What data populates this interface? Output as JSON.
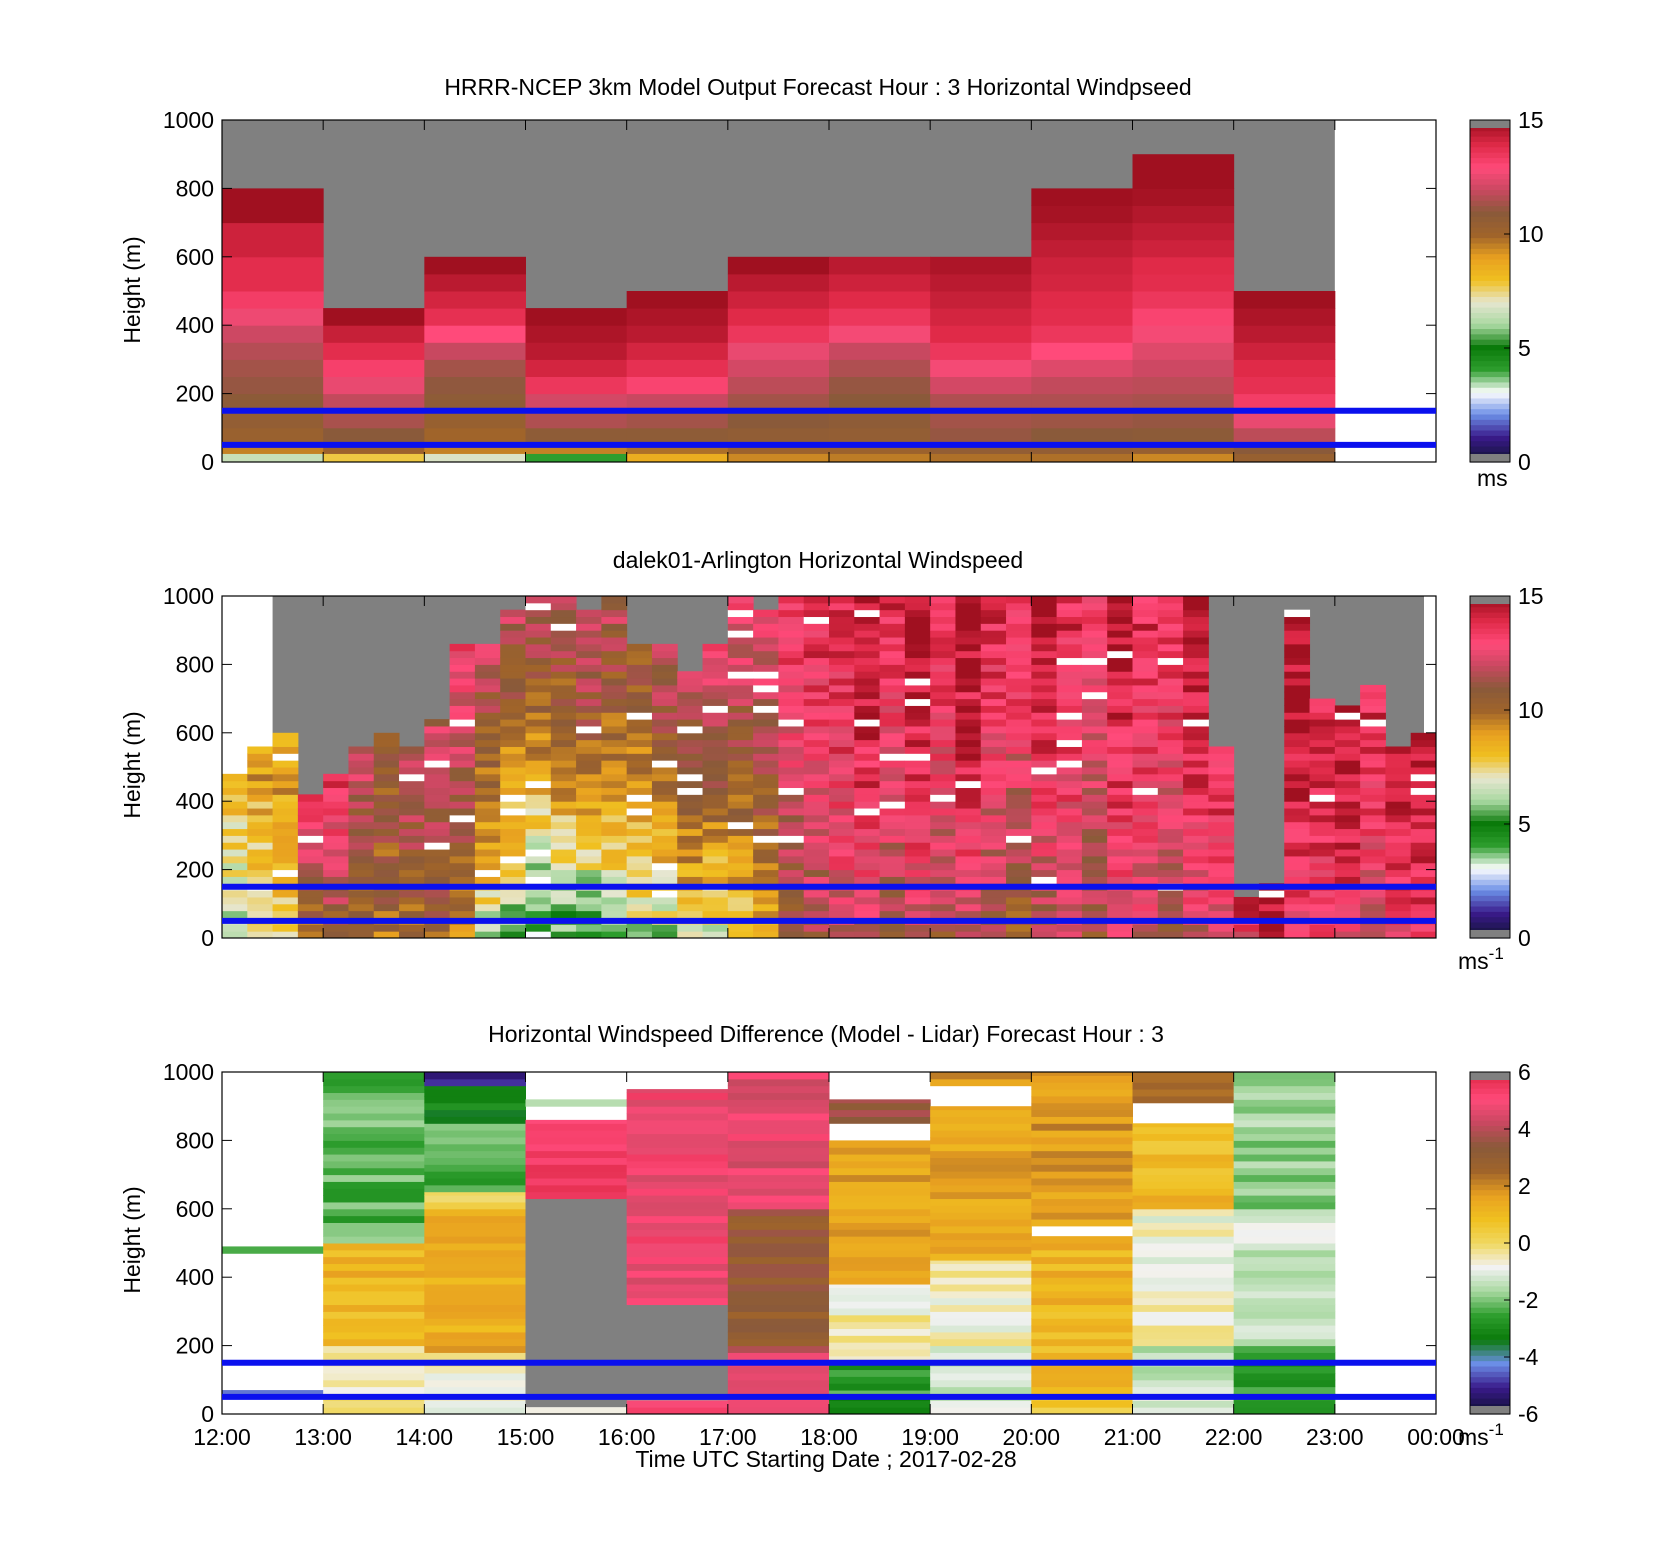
{
  "figure": {
    "xlabel": "Time UTC  Starting Date ; 2017-02-28",
    "x_ticks": [
      "12:00",
      "13:00",
      "14:00",
      "15:00",
      "16:00",
      "17:00",
      "18:00",
      "19:00",
      "20:00",
      "21:00",
      "22:00",
      "23:00",
      "00:00"
    ]
  },
  "colors": {
    "missing": "#808080",
    "overlay_lines": "#0a10ee",
    "speed_scale": [
      "#14143a",
      "#3a1a8a",
      "#6b8ee6",
      "#ffffff",
      "#2e9e2e",
      "#0a7a0a",
      "#a8d8a0",
      "#e6e6d0",
      "#f0c020",
      "#e8a020",
      "#a0642a",
      "#8a5a3a",
      "#c84860",
      "#ff4a7a",
      "#e02a48",
      "#a01020"
    ],
    "diff_scale": [
      "#101038",
      "#3a1a8a",
      "#6b8ee6",
      "#0a7a0a",
      "#2e9e2e",
      "#a8d8a0",
      "#f2f2f2",
      "#f0d860",
      "#f0c020",
      "#e8a020",
      "#a0642a",
      "#8a5a3a",
      "#c84860",
      "#ff4a7a",
      "#e02a48"
    ]
  },
  "chart_data": [
    {
      "type": "heatmap",
      "title": "HRRR-NCEP 3km Model Output   Forecast Hour : 3 Horizontal Windpseed",
      "ylabel": "Height (m)",
      "ylim": [
        0,
        1000
      ],
      "y_ticks": [
        "1000",
        "800",
        "600",
        "400",
        "200",
        "0"
      ],
      "xlim_hours": [
        12,
        24
      ],
      "colorbar": {
        "min": 0,
        "max": 15,
        "ticks": [
          "15",
          "10",
          "5",
          "0"
        ],
        "unit": "ms"
      },
      "reference_lines_m": [
        150,
        50
      ],
      "columns": [
        {
          "start": 12,
          "tops": [
            25,
            50,
            100,
            150,
            200,
            250,
            300,
            350,
            400,
            450,
            500,
            600,
            700,
            800
          ],
          "values": [
            6.5,
            9.5,
            10.3,
            10.6,
            10.9,
            11.2,
            11.4,
            11.7,
            12.1,
            12.7,
            13.4,
            13.9,
            14.3,
            15.0
          ]
        },
        {
          "start": 13,
          "tops": [
            25,
            50,
            100,
            150,
            200,
            250,
            300,
            350,
            400,
            450
          ],
          "values": [
            7.8,
            10.2,
            11.0,
            11.5,
            11.9,
            12.6,
            13.3,
            13.9,
            14.4,
            15.0
          ]
        },
        {
          "start": 14,
          "tops": [
            25,
            50,
            100,
            150,
            200,
            250,
            300,
            350,
            400,
            450,
            500,
            550,
            600
          ],
          "values": [
            6.8,
            9.5,
            10.0,
            10.4,
            10.8,
            11.1,
            11.4,
            12.0,
            13.0,
            13.8,
            14.2,
            14.6,
            15.0
          ]
        },
        {
          "start": 15,
          "tops": [
            25,
            50,
            100,
            150,
            200,
            250,
            300,
            350,
            400,
            450
          ],
          "values": [
            4.0,
            9.5,
            10.8,
            11.6,
            12.2,
            13.6,
            14.2,
            14.6,
            14.8,
            15.0
          ]
        },
        {
          "start": 16,
          "tops": [
            25,
            50,
            100,
            150,
            200,
            250,
            300,
            350,
            400,
            450,
            500
          ],
          "values": [
            8.6,
            9.8,
            10.8,
            11.4,
            12.0,
            13.2,
            13.8,
            14.2,
            14.6,
            14.8,
            15.0
          ]
        },
        {
          "start": 17,
          "tops": [
            25,
            50,
            100,
            150,
            200,
            250,
            300,
            350,
            400,
            450,
            500,
            550,
            600
          ],
          "values": [
            9.4,
            10.2,
            10.7,
            11.0,
            11.4,
            11.8,
            12.2,
            12.6,
            13.6,
            14.0,
            14.3,
            14.6,
            15.0
          ]
        },
        {
          "start": 18,
          "tops": [
            25,
            50,
            100,
            150,
            200,
            250,
            300,
            350,
            400,
            450,
            500,
            550,
            600
          ],
          "values": [
            9.6,
            10.2,
            10.6,
            10.8,
            11.0,
            11.2,
            11.6,
            12.0,
            12.8,
            13.6,
            14.0,
            14.3,
            14.6
          ]
        },
        {
          "start": 19,
          "tops": [
            25,
            50,
            100,
            150,
            200,
            250,
            300,
            350,
            400,
            450,
            500,
            550,
            600
          ],
          "values": [
            9.8,
            10.6,
            11.2,
            11.4,
            11.6,
            12.2,
            12.8,
            13.6,
            14.0,
            14.2,
            14.4,
            14.6,
            14.8
          ]
        },
        {
          "start": 20,
          "tops": [
            25,
            50,
            100,
            150,
            200,
            250,
            300,
            350,
            400,
            450,
            500,
            550,
            600,
            650,
            700,
            750,
            800
          ],
          "values": [
            9.8,
            10.6,
            11.0,
            11.3,
            11.6,
            11.9,
            12.4,
            13.0,
            13.6,
            13.9,
            14.0,
            14.2,
            14.3,
            14.5,
            14.7,
            14.9,
            15.0
          ]
        },
        {
          "start": 21,
          "tops": [
            25,
            50,
            100,
            150,
            200,
            250,
            300,
            350,
            400,
            450,
            500,
            550,
            600,
            650,
            700,
            750,
            800,
            850,
            900
          ],
          "values": [
            9.4,
            10.4,
            10.9,
            11.2,
            11.5,
            11.8,
            12.1,
            12.4,
            12.8,
            13.2,
            13.6,
            13.9,
            14.0,
            14.3,
            14.5,
            14.7,
            14.9,
            15.0,
            15.0
          ]
        },
        {
          "start": 22,
          "tops": [
            25,
            50,
            100,
            150,
            200,
            250,
            300,
            350,
            400,
            450,
            500
          ],
          "values": [
            10.4,
            11.0,
            11.8,
            12.6,
            13.4,
            13.8,
            14.0,
            14.3,
            14.6,
            14.8,
            15.0
          ]
        }
      ]
    },
    {
      "type": "heatmap",
      "title": "dalek01-Arlington  Horizontal Windspeed",
      "ylabel": "Height (m)",
      "ylim": [
        0,
        1000
      ],
      "y_ticks": [
        "1000",
        "800",
        "600",
        "400",
        "200",
        "0"
      ],
      "xlim_hours": [
        12,
        24
      ],
      "colorbar": {
        "min": 0,
        "max": 15,
        "ticks": [
          "15",
          "10",
          "5",
          "0"
        ],
        "unit": "ms-1"
      },
      "reference_lines_m": [
        150,
        50
      ],
      "profiles": [
        {
          "start": 12.0,
          "top": 480,
          "surface": 6,
          "upper": 8
        },
        {
          "start": 12.25,
          "top": 550,
          "surface": 7,
          "upper": 9
        },
        {
          "start": 12.5,
          "top": 600,
          "surface": 8,
          "upper": 9
        },
        {
          "start": 12.75,
          "top": 420,
          "surface": 9,
          "upper": 14
        },
        {
          "start": 13.0,
          "top": 480,
          "surface": 10,
          "upper": 14
        },
        {
          "start": 13.25,
          "top": 550,
          "surface": 10,
          "upper": 12
        },
        {
          "start": 13.5,
          "top": 600,
          "surface": 10,
          "upper": 11
        },
        {
          "start": 13.75,
          "top": 560,
          "surface": 10,
          "upper": 12
        },
        {
          "start": 14.0,
          "top": 640,
          "surface": 10,
          "upper": 12
        },
        {
          "start": 14.25,
          "top": 850,
          "surface": 9,
          "upper": 13
        },
        {
          "start": 14.5,
          "top": 850,
          "surface": 6,
          "upper": 12
        },
        {
          "start": 14.75,
          "top": 950,
          "surface": 5,
          "upper": 12
        },
        {
          "start": 15.0,
          "top": 1000,
          "surface": 4,
          "upper": 12
        },
        {
          "start": 15.25,
          "top": 1000,
          "surface": 5,
          "upper": 12
        },
        {
          "start": 15.5,
          "top": 950,
          "surface": 4,
          "upper": 13
        },
        {
          "start": 15.75,
          "top": 1000,
          "surface": 5,
          "upper": 12
        },
        {
          "start": 16.0,
          "top": 850,
          "surface": 6,
          "upper": 11
        },
        {
          "start": 16.25,
          "top": 850,
          "surface": 6,
          "upper": 12
        },
        {
          "start": 16.5,
          "top": 780,
          "surface": 7,
          "upper": 12
        },
        {
          "start": 16.75,
          "top": 850,
          "surface": 6,
          "upper": 13
        },
        {
          "start": 17.0,
          "top": 1000,
          "surface": 7,
          "upper": 13
        },
        {
          "start": 17.25,
          "top": 950,
          "surface": 8,
          "upper": 13
        },
        {
          "start": 17.5,
          "top": 1000,
          "surface": 10,
          "upper": 14
        },
        {
          "start": 17.75,
          "top": 1000,
          "surface": 11,
          "upper": 14
        },
        {
          "start": 18.0,
          "top": 1000,
          "surface": 12,
          "upper": 14
        },
        {
          "start": 18.25,
          "top": 1000,
          "surface": 12,
          "upper": 15
        },
        {
          "start": 18.5,
          "top": 1000,
          "surface": 11,
          "upper": 14
        },
        {
          "start": 18.75,
          "top": 1000,
          "surface": 12,
          "upper": 15
        },
        {
          "start": 19.0,
          "top": 1000,
          "surface": 11,
          "upper": 14
        },
        {
          "start": 19.25,
          "top": 1000,
          "surface": 12,
          "upper": 15
        },
        {
          "start": 19.5,
          "top": 1000,
          "surface": 11,
          "upper": 14
        },
        {
          "start": 19.75,
          "top": 1000,
          "surface": 10,
          "upper": 14
        },
        {
          "start": 20.0,
          "top": 1000,
          "surface": 11,
          "upper": 15
        },
        {
          "start": 20.25,
          "top": 1000,
          "surface": 12,
          "upper": 14
        },
        {
          "start": 20.5,
          "top": 1000,
          "surface": 11,
          "upper": 13
        },
        {
          "start": 20.75,
          "top": 1000,
          "surface": 12,
          "upper": 15
        },
        {
          "start": 21.0,
          "top": 1000,
          "surface": 12,
          "upper": 14
        },
        {
          "start": 21.25,
          "top": 1000,
          "surface": 11,
          "upper": 14
        },
        {
          "start": 21.5,
          "top": 1000,
          "surface": 12,
          "upper": 15
        },
        {
          "start": 21.75,
          "top": 550,
          "surface": 12,
          "upper": 14
        },
        {
          "start": 22.0,
          "top": 120,
          "surface": 13,
          "upper": 14
        },
        {
          "start": 22.25,
          "top": 160,
          "surface": 14,
          "upper": 15
        },
        {
          "start": 22.5,
          "top": 950,
          "surface": 13,
          "upper": 15
        },
        {
          "start": 22.75,
          "top": 700,
          "surface": 13,
          "upper": 14
        },
        {
          "start": 23.0,
          "top": 680,
          "surface": 13,
          "upper": 15
        },
        {
          "start": 23.25,
          "top": 730,
          "surface": 12,
          "upper": 14
        },
        {
          "start": 23.5,
          "top": 560,
          "surface": 13,
          "upper": 15
        },
        {
          "start": 23.75,
          "top": 590,
          "surface": 13,
          "upper": 15
        }
      ]
    },
    {
      "type": "heatmap",
      "title": "Horizontal Windspeed Difference (Model - Lidar) Forecast Hour : 3",
      "ylabel": "Height (m)",
      "xlabel": "Time UTC  Starting Date ; 2017-02-28",
      "ylim": [
        0,
        1000
      ],
      "y_ticks": [
        "1000",
        "800",
        "600",
        "400",
        "200",
        "0"
      ],
      "xlim_hours": [
        12,
        24
      ],
      "colorbar": {
        "min": -6,
        "max": 6,
        "ticks": [
          "6",
          "4",
          "2",
          "0",
          "-2",
          "-4",
          "-6"
        ],
        "unit": "ms-1"
      },
      "reference_lines_m": [
        150,
        50
      ],
      "columns": [
        {
          "start": 12,
          "segments": [
            [
              470,
              490,
              -2.5
            ],
            [
              60,
              70,
              -5
            ]
          ]
        },
        {
          "start": 13,
          "segments": [
            [
              0,
              100,
              -0.5
            ],
            [
              100,
              200,
              -0.3
            ],
            [
              200,
              300,
              0.8
            ],
            [
              300,
              500,
              1.2
            ],
            [
              500,
              1000,
              -2.3
            ]
          ]
        },
        {
          "start": 14,
          "segments": [
            [
              0,
              180,
              -0.6
            ],
            [
              180,
              600,
              1.4
            ],
            [
              600,
              650,
              0.2
            ],
            [
              650,
              850,
              -2.4
            ],
            [
              850,
              960,
              -3
            ],
            [
              960,
              1000,
              -5.2
            ]
          ]
        },
        {
          "start": 15,
          "segments": [
            [
              0,
              20,
              -1
            ],
            [
              20,
              630,
              null
            ],
            [
              630,
              860,
              5.3
            ],
            [
              900,
              920,
              -1
            ]
          ]
        },
        {
          "start": 16,
          "segments": [
            [
              0,
              40,
              5.4
            ],
            [
              40,
              320,
              null
            ],
            [
              320,
              950,
              5.0
            ]
          ]
        },
        {
          "start": 17,
          "segments": [
            [
              0,
              200,
              4.5
            ],
            [
              200,
              600,
              3.2
            ],
            [
              600,
              1000,
              4.8
            ]
          ]
        },
        {
          "start": 18,
          "segments": [
            [
              0,
              50,
              -3
            ],
            [
              50,
              150,
              -2.6
            ],
            [
              150,
              380,
              -0.6
            ],
            [
              380,
              800,
              1.6
            ],
            [
              850,
              920,
              3.4
            ]
          ]
        },
        {
          "start": 19,
          "segments": [
            [
              0,
              200,
              -1.2
            ],
            [
              200,
              450,
              -0.6
            ],
            [
              450,
              900,
              1.5
            ],
            [
              960,
              1000,
              1.8
            ]
          ]
        },
        {
          "start": 20,
          "segments": [
            [
              0,
              80,
              0.7
            ],
            [
              80,
              300,
              1.0
            ],
            [
              300,
              520,
              1.2
            ],
            [
              550,
              1000,
              1.8
            ]
          ]
        },
        {
          "start": 21,
          "segments": [
            [
              0,
              200,
              -1.3
            ],
            [
              200,
              600,
              -0.7
            ],
            [
              600,
              850,
              1.0
            ],
            [
              910,
              1000,
              2.6
            ]
          ]
        },
        {
          "start": 22,
          "segments": [
            [
              0,
              200,
              -2.8
            ],
            [
              200,
              600,
              -1.2
            ],
            [
              600,
              1000,
              -1.8
            ]
          ]
        }
      ]
    }
  ]
}
